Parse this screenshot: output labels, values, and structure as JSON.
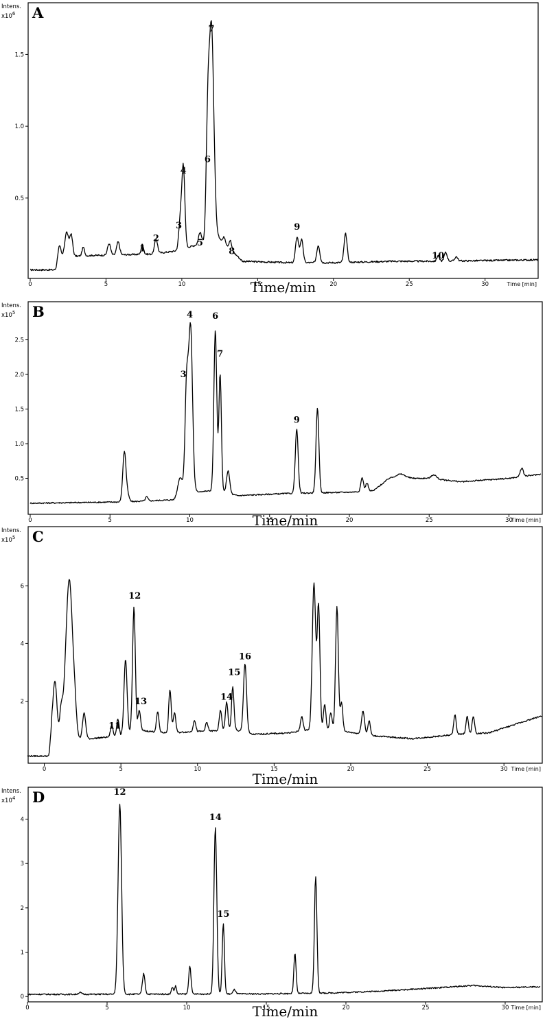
{
  "figure": {
    "xlabel": "Time/min",
    "ylabel": "Intens.",
    "x_unit": "Time [min]"
  },
  "chart_data": [
    {
      "panel": "A",
      "type": "line",
      "title": "",
      "ylabel_exp": "x10",
      "exp": "6",
      "xticks": [
        "0",
        "5",
        "10",
        "15",
        "20",
        "25",
        "30"
      ],
      "yticks": [
        "0.5",
        "1.0",
        "1.5"
      ],
      "ytick_values": [
        0.5,
        1.0,
        1.5
      ],
      "xlim": [
        0,
        33.5
      ],
      "ylim": [
        -0.05,
        1.86
      ],
      "baseline": [
        [
          0,
          0.0
        ],
        [
          1.7,
          0.0
        ],
        [
          2.0,
          0.09
        ],
        [
          4.0,
          0.1
        ],
        [
          8.0,
          0.11
        ],
        [
          9.5,
          0.13
        ],
        [
          12.5,
          0.22
        ],
        [
          14,
          0.06
        ],
        [
          17,
          0.05
        ],
        [
          20,
          0.05
        ],
        [
          24,
          0.06
        ],
        [
          27,
          0.06
        ],
        [
          33.5,
          0.07
        ]
      ],
      "peaks": [
        [
          1.9,
          0.1,
          0.1
        ],
        [
          2.4,
          0.17,
          0.12
        ],
        [
          2.7,
          0.15,
          0.1
        ],
        [
          3.5,
          0.06,
          0.08
        ],
        [
          5.2,
          0.08,
          0.1
        ],
        [
          5.8,
          0.09,
          0.1
        ],
        [
          7.4,
          0.07,
          0.08
        ],
        [
          8.3,
          0.1,
          0.1
        ],
        [
          9.9,
          0.2,
          0.1
        ],
        [
          10.1,
          0.56,
          0.1
        ],
        [
          11.2,
          0.08,
          0.1
        ],
        [
          11.7,
          0.62,
          0.1
        ],
        [
          11.95,
          1.5,
          0.16
        ],
        [
          12.8,
          0.04,
          0.08
        ],
        [
          13.2,
          0.06,
          0.08
        ],
        [
          17.6,
          0.18,
          0.1
        ],
        [
          17.9,
          0.16,
          0.1
        ],
        [
          19,
          0.12,
          0.1
        ],
        [
          20.8,
          0.2,
          0.1
        ],
        [
          26.9,
          0.04,
          0.08
        ],
        [
          27.4,
          0.06,
          0.1
        ],
        [
          28.1,
          0.03,
          0.1
        ]
      ],
      "peak_labels": [
        {
          "label": "1",
          "x": 7.4,
          "y": 0.13
        },
        {
          "label": "2",
          "x": 8.3,
          "y": 0.2
        },
        {
          "label": "3",
          "x": 9.8,
          "y": 0.29
        },
        {
          "label": "4",
          "x": 10.1,
          "y": 0.67
        },
        {
          "label": "5",
          "x": 11.2,
          "y": 0.17
        },
        {
          "label": "6",
          "x": 11.7,
          "y": 0.75
        },
        {
          "label": "7",
          "x": 11.95,
          "y": 1.66
        },
        {
          "label": "8",
          "x": 13.3,
          "y": 0.11
        },
        {
          "label": "9",
          "x": 17.6,
          "y": 0.28
        },
        {
          "label": "10",
          "x": 26.9,
          "y": 0.08
        }
      ]
    },
    {
      "panel": "B",
      "type": "line",
      "title": "",
      "ylabel_exp": "x10",
      "exp": "5",
      "xticks": [
        "0",
        "5",
        "10",
        "15",
        "20",
        "25",
        "30"
      ],
      "yticks": [
        "0.5",
        "1.0",
        "1.5",
        "2.0",
        "2.5"
      ],
      "ytick_values": [
        0.5,
        1.0,
        1.5,
        2.0,
        2.5
      ],
      "xlim": [
        0,
        32
      ],
      "ylim": [
        0.0,
        3.05
      ],
      "baseline": [
        [
          0,
          0.14
        ],
        [
          6,
          0.16
        ],
        [
          9,
          0.19
        ],
        [
          10,
          0.3
        ],
        [
          11.5,
          0.32
        ],
        [
          13,
          0.25
        ],
        [
          16,
          0.28
        ],
        [
          20,
          0.3
        ],
        [
          21.5,
          0.32
        ],
        [
          22.5,
          0.5
        ],
        [
          25,
          0.5
        ],
        [
          27,
          0.45
        ],
        [
          30,
          0.5
        ],
        [
          32,
          0.56
        ]
      ],
      "peaks": [
        [
          5.9,
          0.72,
          0.1
        ],
        [
          6.1,
          0.1,
          0.1
        ],
        [
          7.3,
          0.06,
          0.08
        ],
        [
          9.4,
          0.28,
          0.15
        ],
        [
          9.8,
          1.53,
          0.1
        ],
        [
          10.05,
          2.38,
          0.12
        ],
        [
          11.6,
          2.33,
          0.09
        ],
        [
          11.9,
          1.7,
          0.08
        ],
        [
          12.4,
          0.33,
          0.1
        ],
        [
          16.7,
          0.93,
          0.09
        ],
        [
          18.0,
          1.22,
          0.09
        ],
        [
          20.8,
          0.2,
          0.08
        ],
        [
          21.1,
          0.12,
          0.08
        ],
        [
          23.2,
          0.06,
          0.3
        ],
        [
          25.3,
          0.06,
          0.15
        ],
        [
          30.8,
          0.12,
          0.1
        ]
      ],
      "peak_labels": [
        {
          "label": "3",
          "x": 9.6,
          "y": 1.96
        },
        {
          "label": "4",
          "x": 10.0,
          "y": 2.82
        },
        {
          "label": "6",
          "x": 11.6,
          "y": 2.8
        },
        {
          "label": "7",
          "x": 11.9,
          "y": 2.26
        },
        {
          "label": "9",
          "x": 16.7,
          "y": 1.3
        }
      ]
    },
    {
      "panel": "C",
      "type": "line",
      "title": "",
      "ylabel_exp": "x10",
      "exp": "5",
      "xticks": [
        "0",
        "5",
        "10",
        "15",
        "20",
        "25",
        "30"
      ],
      "yticks": [
        "2",
        "4",
        "6"
      ],
      "ytick_values": [
        2,
        4,
        6
      ],
      "xlim": [
        -1.1,
        32.5
      ],
      "ylim": [
        -0.15,
        8.05
      ],
      "baseline": [
        [
          -1.1,
          0.1
        ],
        [
          0.3,
          0.1
        ],
        [
          0.5,
          1.2
        ],
        [
          1,
          0.7
        ],
        [
          3,
          0.7
        ],
        [
          5,
          0.8
        ],
        [
          6,
          1.0
        ],
        [
          8,
          0.9
        ],
        [
          10,
          0.95
        ],
        [
          12.5,
          1.0
        ],
        [
          13.6,
          0.85
        ],
        [
          16,
          0.9
        ],
        [
          17,
          1.0
        ],
        [
          19,
          1.0
        ],
        [
          21.5,
          0.8
        ],
        [
          24,
          0.7
        ],
        [
          27,
          0.85
        ],
        [
          29,
          0.9
        ],
        [
          32.5,
          1.5
        ]
      ],
      "peaks": [
        [
          0.7,
          1.7,
          0.12
        ],
        [
          1.1,
          0.9,
          0.1
        ],
        [
          1.5,
          2.4,
          0.2
        ],
        [
          1.7,
          3.8,
          0.2
        ],
        [
          2.0,
          0.6,
          0.1
        ],
        [
          2.6,
          0.9,
          0.1
        ],
        [
          4.4,
          0.4,
          0.08
        ],
        [
          4.8,
          0.6,
          0.08
        ],
        [
          5.3,
          2.6,
          0.1
        ],
        [
          5.85,
          4.3,
          0.09
        ],
        [
          6.2,
          0.7,
          0.08
        ],
        [
          7.4,
          0.7,
          0.08
        ],
        [
          8.2,
          1.5,
          0.08
        ],
        [
          8.5,
          0.7,
          0.08
        ],
        [
          9.8,
          0.4,
          0.08
        ],
        [
          10.6,
          0.3,
          0.08
        ],
        [
          11.5,
          0.7,
          0.08
        ],
        [
          11.9,
          1.0,
          0.08
        ],
        [
          12.3,
          1.5,
          0.08
        ],
        [
          13.1,
          2.4,
          0.1
        ],
        [
          16.8,
          0.5,
          0.08
        ],
        [
          17.6,
          5.1,
          0.11
        ],
        [
          17.9,
          4.3,
          0.09
        ],
        [
          18.3,
          0.9,
          0.08
        ],
        [
          18.7,
          0.6,
          0.08
        ],
        [
          19.1,
          4.3,
          0.09
        ],
        [
          19.4,
          1.0,
          0.08
        ],
        [
          20.8,
          0.8,
          0.1
        ],
        [
          21.2,
          0.5,
          0.08
        ],
        [
          26.8,
          0.7,
          0.08
        ],
        [
          27.6,
          0.6,
          0.08
        ],
        [
          28.0,
          0.6,
          0.08
        ]
      ],
      "peak_labels": [
        {
          "label": "11",
          "x": 4.6,
          "y": 1.05
        },
        {
          "label": "12",
          "x": 5.9,
          "y": 5.55
        },
        {
          "label": "13",
          "x": 6.3,
          "y": 1.9
        },
        {
          "label": "14",
          "x": 11.9,
          "y": 2.05
        },
        {
          "label": "15",
          "x": 12.4,
          "y": 2.9
        },
        {
          "label": "16",
          "x": 13.1,
          "y": 3.45
        }
      ]
    },
    {
      "panel": "D",
      "type": "line",
      "title": "",
      "ylabel_exp": "x10",
      "exp": "4",
      "xticks": [
        "0",
        "5",
        "10",
        "15",
        "20",
        "25",
        "30"
      ],
      "yticks": [
        "0",
        "1",
        "2",
        "3",
        "4"
      ],
      "ytick_values": [
        0,
        1,
        2,
        3,
        4
      ],
      "xlim": [
        0,
        32.2
      ],
      "ylim": [
        -0.12,
        4.72
      ],
      "baseline": [
        [
          0,
          0.05
        ],
        [
          3,
          0.05
        ],
        [
          15,
          0.06
        ],
        [
          19,
          0.08
        ],
        [
          22,
          0.12
        ],
        [
          25,
          0.18
        ],
        [
          28,
          0.25
        ],
        [
          30,
          0.2
        ],
        [
          32.2,
          0.22
        ]
      ],
      "peaks": [
        [
          3.3,
          0.04,
          0.1
        ],
        [
          5.8,
          4.28,
          0.11
        ],
        [
          7.3,
          0.46,
          0.08
        ],
        [
          9.1,
          0.16,
          0.06
        ],
        [
          9.3,
          0.18,
          0.06
        ],
        [
          10.2,
          0.64,
          0.07
        ],
        [
          11.8,
          3.76,
          0.09
        ],
        [
          12.3,
          1.58,
          0.07
        ],
        [
          13.0,
          0.1,
          0.08
        ],
        [
          16.8,
          0.9,
          0.07
        ],
        [
          18.1,
          2.62,
          0.08
        ]
      ],
      "peak_labels": [
        {
          "label": "12",
          "x": 5.8,
          "y": 4.55
        },
        {
          "label": "14",
          "x": 11.8,
          "y": 3.98
        },
        {
          "label": "15",
          "x": 12.3,
          "y": 1.8
        }
      ]
    }
  ]
}
